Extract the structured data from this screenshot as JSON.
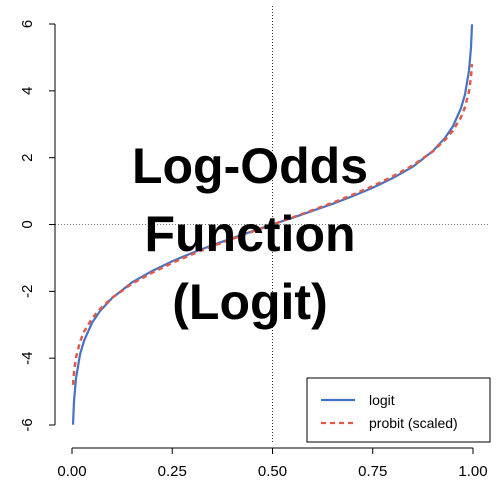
{
  "chart_data": {
    "type": "line",
    "title_lines": [
      "Log-Odds",
      "Function",
      "(Logit)"
    ],
    "xlabel": "",
    "ylabel": "",
    "xlim": [
      0,
      1
    ],
    "ylim": [
      -6.2,
      6.1
    ],
    "x_ticks": [
      0.0,
      0.25,
      0.5,
      0.75,
      1.0
    ],
    "x_tick_labels": [
      "0.00",
      "0.25",
      "0.50",
      "0.75",
      "1.00"
    ],
    "y_ticks": [
      -6,
      -4,
      -2,
      0,
      2,
      4,
      6
    ],
    "y_tick_labels": [
      "-6",
      "-4",
      "-2",
      "0",
      "2",
      "4",
      "6"
    ],
    "reference_lines": {
      "x": 0.5,
      "y": 0
    },
    "legend_position": "bottom-right",
    "series": [
      {
        "name": "logit",
        "color": "#4472c4",
        "style": "solid",
        "x": [
          0.0025,
          0.005,
          0.01,
          0.02,
          0.03,
          0.05,
          0.07,
          0.1,
          0.15,
          0.2,
          0.25,
          0.3,
          0.35,
          0.4,
          0.45,
          0.5,
          0.55,
          0.6,
          0.65,
          0.7,
          0.75,
          0.8,
          0.85,
          0.9,
          0.93,
          0.95,
          0.97,
          0.98,
          0.99,
          0.995,
          0.9975
        ],
        "y": [
          -5.99,
          -5.29,
          -4.6,
          -3.89,
          -3.48,
          -2.94,
          -2.59,
          -2.2,
          -1.73,
          -1.39,
          -1.1,
          -0.85,
          -0.62,
          -0.41,
          -0.2,
          0.0,
          0.2,
          0.41,
          0.62,
          0.85,
          1.1,
          1.39,
          1.73,
          2.2,
          2.59,
          2.94,
          3.48,
          3.89,
          4.6,
          5.29,
          5.99
        ]
      },
      {
        "name": "probit (scaled)",
        "color": "#e05a47",
        "style": "dashed",
        "x": [
          0.0025,
          0.005,
          0.01,
          0.02,
          0.03,
          0.05,
          0.07,
          0.1,
          0.15,
          0.2,
          0.25,
          0.3,
          0.35,
          0.4,
          0.45,
          0.5,
          0.55,
          0.6,
          0.65,
          0.7,
          0.75,
          0.8,
          0.85,
          0.9,
          0.93,
          0.95,
          0.97,
          0.98,
          0.99,
          0.995,
          0.9975
        ],
        "y": [
          -4.8,
          -4.42,
          -3.98,
          -3.51,
          -3.21,
          -2.81,
          -2.53,
          -2.19,
          -1.77,
          -1.44,
          -1.15,
          -0.89,
          -0.65,
          -0.43,
          -0.21,
          0.0,
          0.21,
          0.43,
          0.65,
          0.89,
          1.15,
          1.44,
          1.77,
          2.19,
          2.53,
          2.81,
          3.21,
          3.51,
          3.98,
          4.42,
          4.8
        ]
      }
    ]
  }
}
